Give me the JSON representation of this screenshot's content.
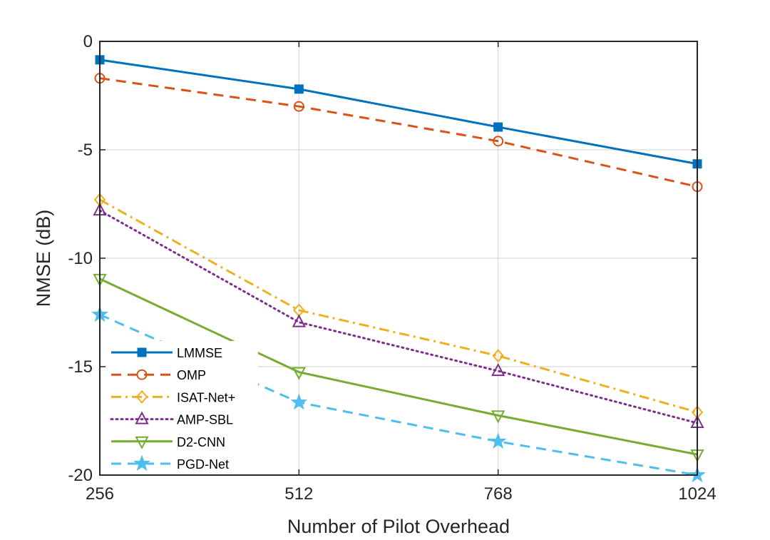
{
  "chart_data": {
    "type": "line",
    "title": "",
    "xlabel": "Number of Pilot Overhead",
    "ylabel": "NMSE (dB)",
    "x": [
      256,
      512,
      768,
      1024
    ],
    "x_ticks": [
      "256",
      "512",
      "768",
      "1024"
    ],
    "y_ticks": [
      "0",
      "-5",
      "-10",
      "-15",
      "-20"
    ],
    "y_tick_values": [
      0,
      -5,
      -10,
      -15,
      -20
    ],
    "xlim": [
      256,
      1024
    ],
    "ylim": [
      -20,
      0
    ],
    "grid": true,
    "legend_position": "bottom-left",
    "series": [
      {
        "name": "LMMSE",
        "values": [
          -0.85,
          -2.2,
          -3.95,
          -5.65
        ],
        "color": "#0072BD",
        "dash": "solid",
        "marker": "square"
      },
      {
        "name": "OMP",
        "values": [
          -1.7,
          -3.0,
          -4.6,
          -6.7
        ],
        "color": "#D95319",
        "dash": "dashed",
        "marker": "circle"
      },
      {
        "name": "ISAT-Net+",
        "values": [
          -7.3,
          -12.4,
          -14.5,
          -17.1
        ],
        "color": "#EDB120",
        "dash": "dashdot",
        "marker": "diamond"
      },
      {
        "name": "AMP-SBL",
        "values": [
          -7.8,
          -12.95,
          -15.2,
          -17.6
        ],
        "color": "#7E2F8E",
        "dash": "dotted",
        "marker": "triangle-up"
      },
      {
        "name": "D2-CNN",
        "values": [
          -10.95,
          -15.25,
          -17.25,
          -19.05
        ],
        "color": "#77AC30",
        "dash": "solid",
        "marker": "triangle-down"
      },
      {
        "name": "PGD-Net",
        "values": [
          -12.6,
          -16.65,
          -18.45,
          -20.0
        ],
        "color": "#4DBEEE",
        "dash": "dashed",
        "marker": "star"
      }
    ]
  }
}
